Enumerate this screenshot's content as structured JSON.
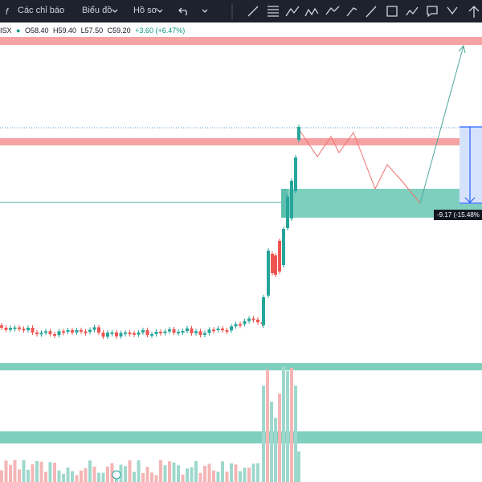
{
  "toolbar": {
    "indicators": "Các chỉ báo",
    "chart": "Biểu đồ",
    "profile": "Hồ sơ"
  },
  "legend": {
    "symbol": "ISX",
    "open": "O58.40",
    "high": "H59.40",
    "low": "L57.50",
    "close": "C59.20",
    "change": "+3.60 (+6.47%)"
  },
  "measure": {
    "label": "-9.17 (-15.48%"
  }
}
